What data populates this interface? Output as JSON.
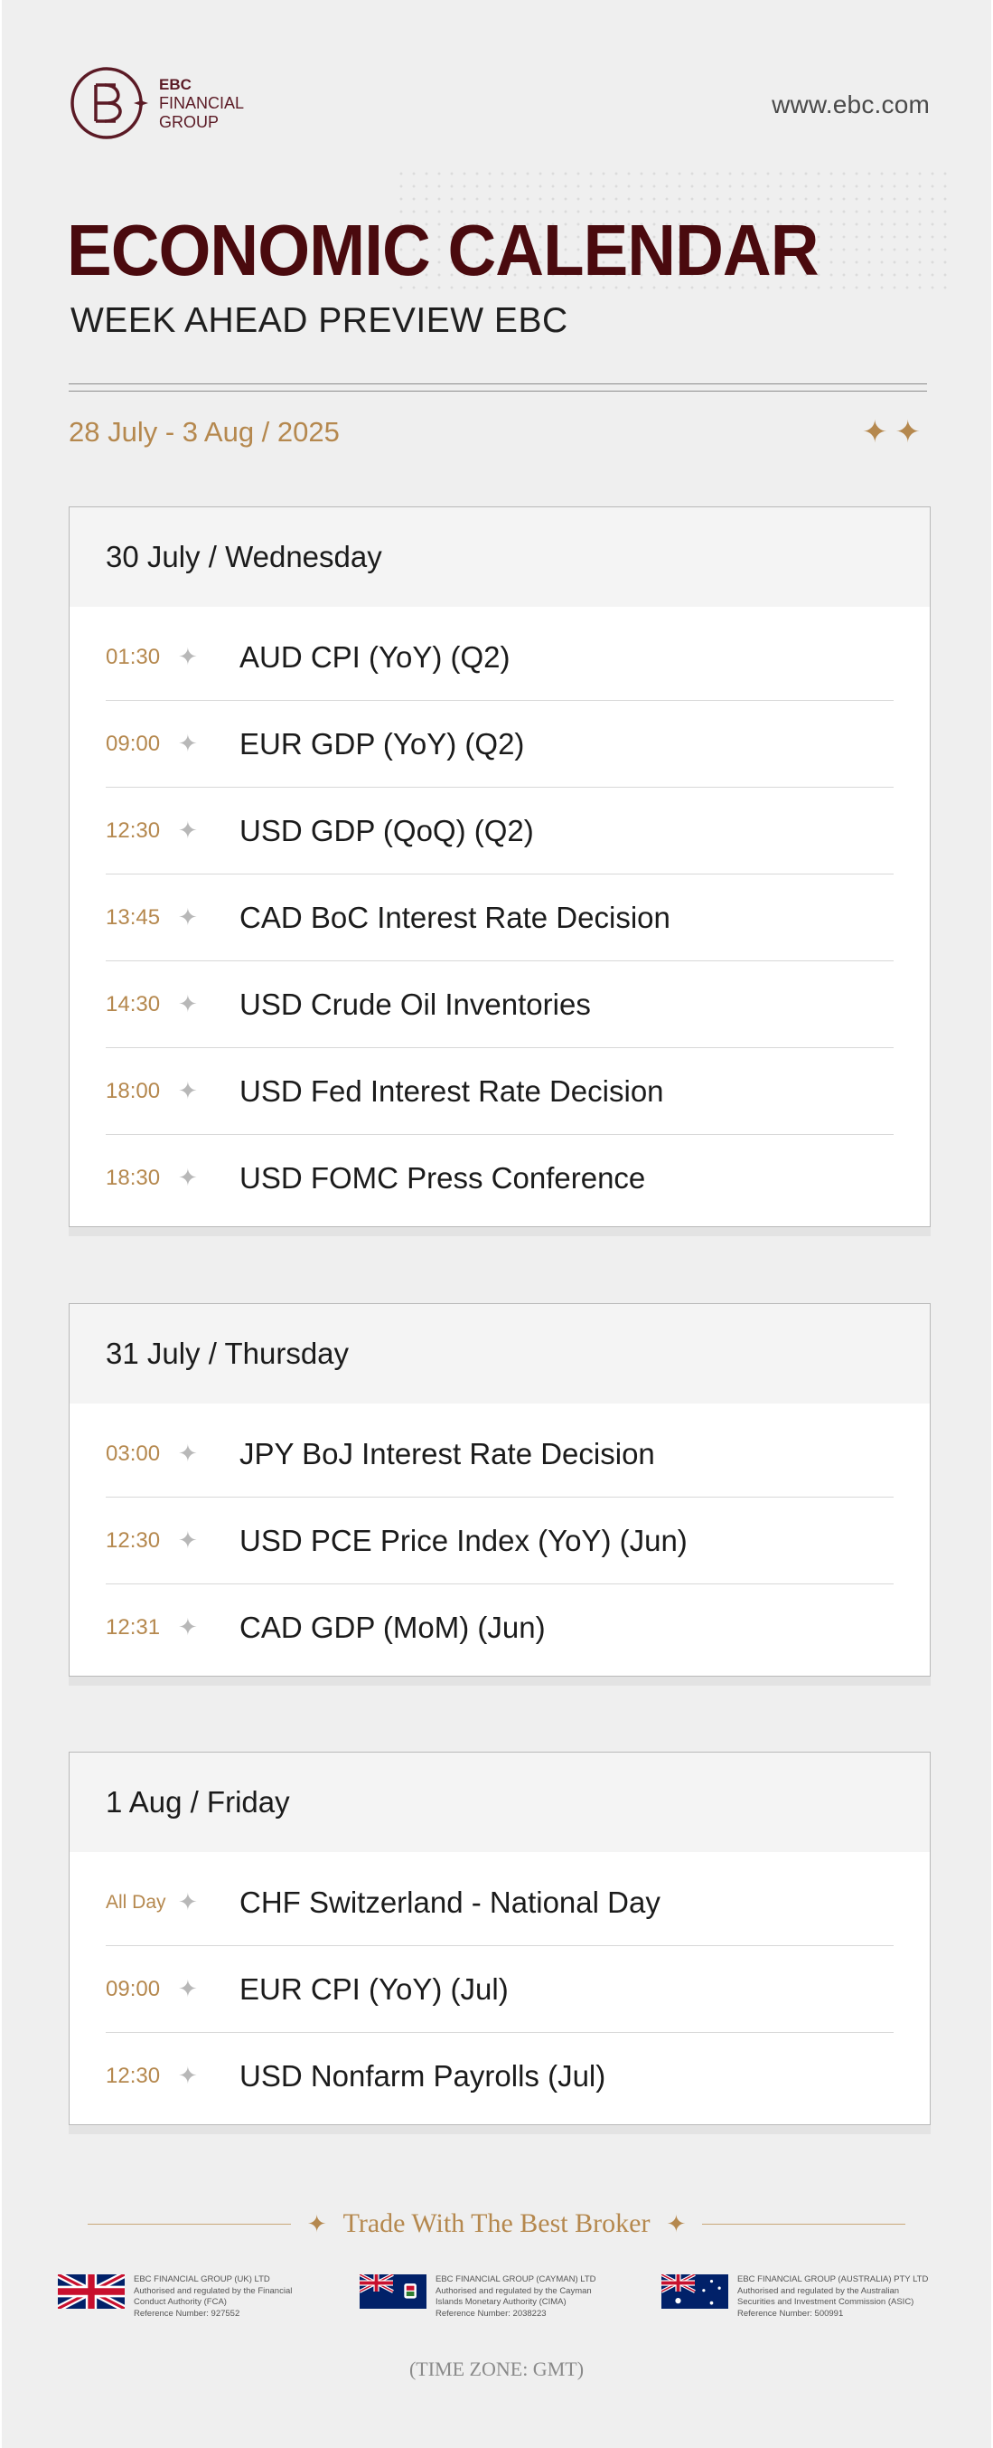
{
  "brand": {
    "logo_line1": "EBC",
    "logo_line2": "FINANCIAL",
    "logo_line3": "GROUP",
    "website": "www.ebc.com",
    "accent_color": "#b5884e",
    "title_color": "#4a0a0e"
  },
  "header": {
    "title": "ECONOMIC CALENDAR",
    "subtitle": "WEEK AHEAD PREVIEW EBC",
    "date_range": "28 July  - 3 Aug / 2025"
  },
  "days": [
    {
      "label": "30 July  /  Wednesday",
      "events": [
        {
          "time": "01:30",
          "name": "AUD CPI (YoY) (Q2)"
        },
        {
          "time": "09:00",
          "name": "EUR GDP (YoY) (Q2)"
        },
        {
          "time": "12:30",
          "name": "USD GDP (QoQ) (Q2)"
        },
        {
          "time": "13:45",
          "name": "CAD BoC Interest Rate Decision"
        },
        {
          "time": "14:30",
          "name": "USD Crude Oil Inventories"
        },
        {
          "time": "18:00",
          "name": "USD Fed Interest Rate Decision"
        },
        {
          "time": "18:30",
          "name": "USD FOMC Press Conference"
        }
      ]
    },
    {
      "label": "31 July  /  Thursday",
      "events": [
        {
          "time": "03:00",
          "name": "JPY BoJ Interest Rate Decision"
        },
        {
          "time": "12:30",
          "name": "USD  PCE Price Index (YoY) (Jun)"
        },
        {
          "time": "12:31",
          "name": "CAD GDP (MoM) (Jun)"
        }
      ]
    },
    {
      "label": "1 Aug  /  Friday",
      "events": [
        {
          "time": "All Day",
          "name": "CHF Switzerland - National Day"
        },
        {
          "time": "09:00",
          "name": "EUR CPI (YoY) (Jul)"
        },
        {
          "time": "12:30",
          "name": "USD Nonfarm Payrolls (Jul)"
        }
      ]
    }
  ],
  "footer": {
    "tagline": "Trade With The Best Broker",
    "timezone": "(TIME ZONE: GMT)",
    "regulators": [
      {
        "flag": "uk-flag-icon",
        "line1": "EBC FINANCIAL GROUP (UK) LTD",
        "line2": "Authorised and regulated by the Financial",
        "line3": "Conduct Authority (FCA)",
        "line4": "Reference Number: 927552"
      },
      {
        "flag": "cayman-flag-icon",
        "line1": "EBC FINANCIAL GROUP (CAYMAN) LTD",
        "line2": "Authorised and regulated by the Cayman",
        "line3": "Islands Monetary Authority (CIMA)",
        "line4": "Reference Number: 2038223"
      },
      {
        "flag": "australia-flag-icon",
        "line1": "EBC FINANCIAL GROUP (AUSTRALIA) PTY LTD",
        "line2": "Authorised and regulated by the Australian",
        "line3": "Securities and Investment Commission (ASIC)",
        "line4": "Reference Number: 500991"
      }
    ]
  }
}
